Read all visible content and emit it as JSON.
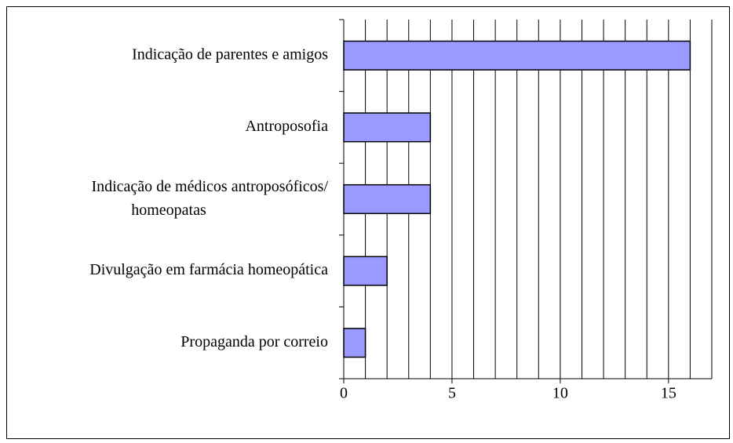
{
  "chart_data": {
    "type": "barh",
    "categories": [
      "Indicação de parentes e amigos",
      "Antroposofia",
      [
        "Indicação de médicos antroposóficos/",
        "homeopatas"
      ],
      "Divulgação em farmácia homeopática",
      "Propaganda por correio"
    ],
    "values": [
      16,
      4,
      4,
      2,
      1
    ],
    "color": "#9999ff",
    "xlim": [
      0,
      17
    ],
    "xticks": [
      0,
      5,
      10,
      15
    ],
    "minor_xticks": [
      1,
      2,
      3,
      4,
      5,
      6,
      7,
      8,
      9,
      10,
      11,
      12,
      13,
      14,
      15,
      16,
      17
    ],
    "grid": true
  }
}
